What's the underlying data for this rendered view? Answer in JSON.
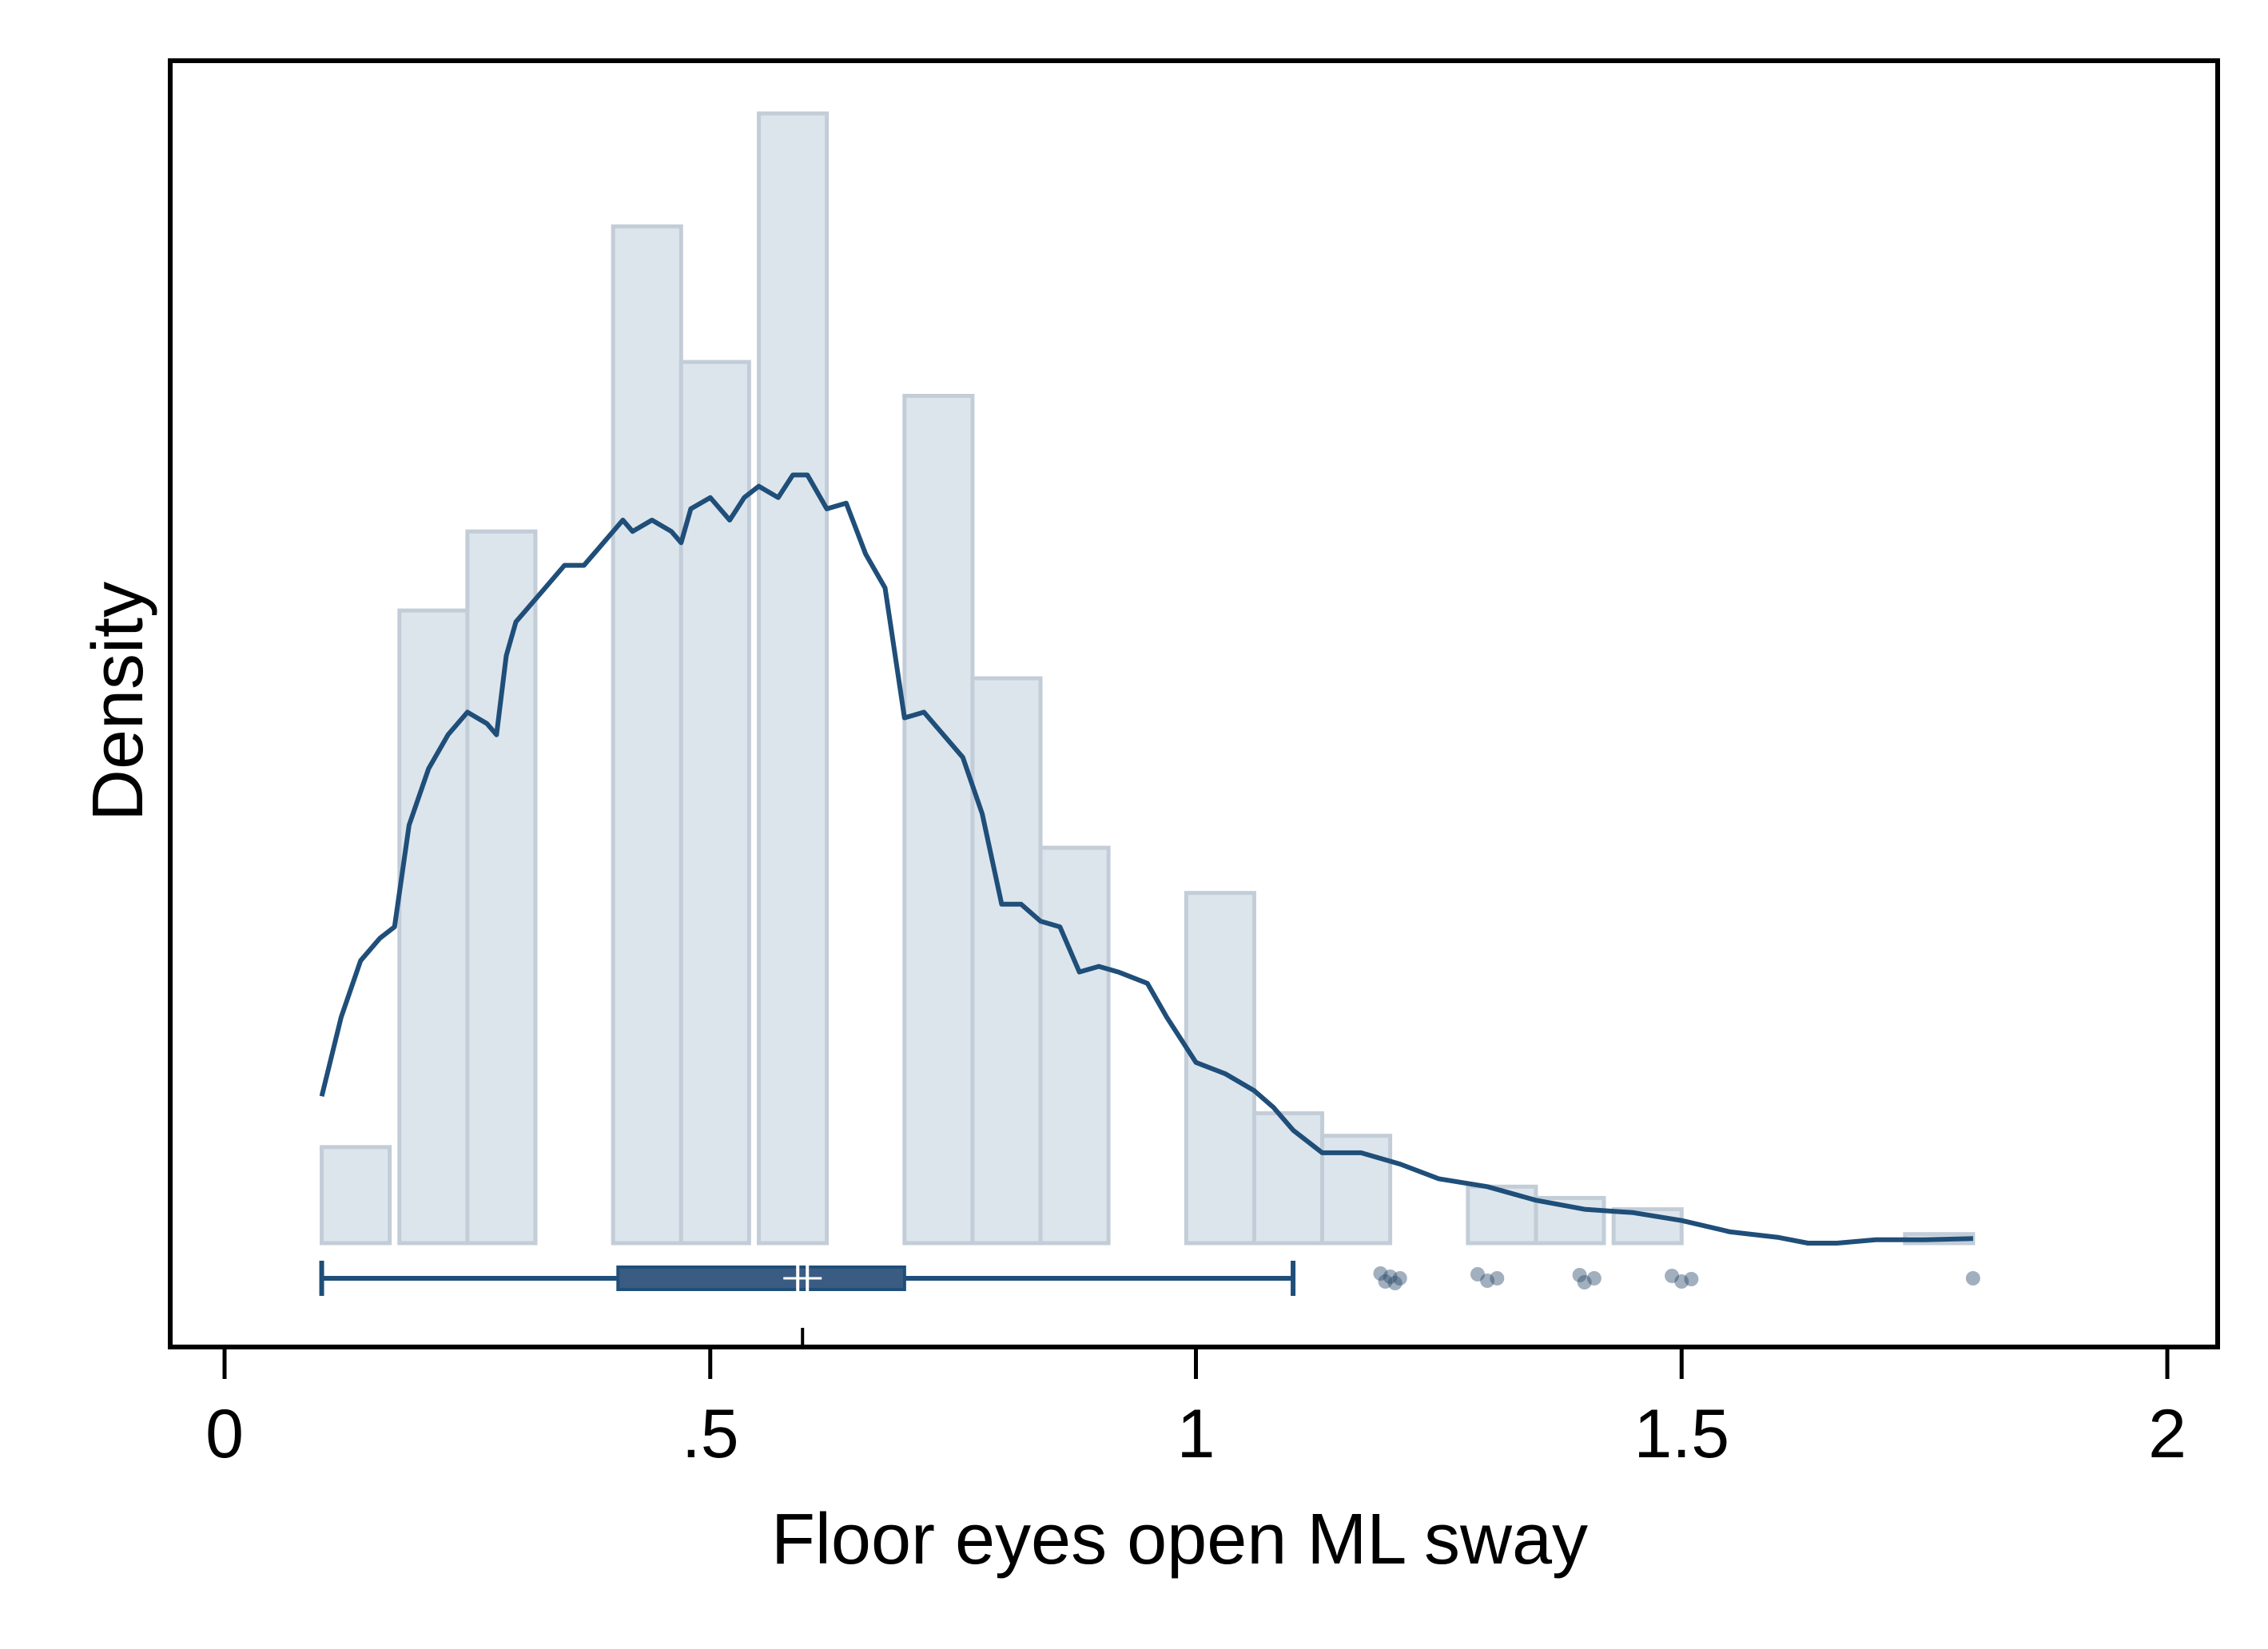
{
  "chart_data": {
    "type": "histogram",
    "xlabel": "Floor eyes open ML sway",
    "ylabel": "Density",
    "xlim": [
      0,
      2
    ],
    "x_ticks": [
      {
        "value": 0,
        "label": "0"
      },
      {
        "value": 0.5,
        "label": ".5"
      },
      {
        "value": 1,
        "label": "1"
      },
      {
        "value": 1.5,
        "label": "1.5"
      },
      {
        "value": 2,
        "label": "2"
      }
    ],
    "ylim": [
      0,
      1.02
    ],
    "grid": false,
    "bins": [
      {
        "x0": 0.1,
        "x1": 0.17,
        "height": 0.085
      },
      {
        "x0": 0.18,
        "x1": 0.25,
        "height": 0.56
      },
      {
        "x0": 0.25,
        "x1": 0.32,
        "height": 0.63
      },
      {
        "x0": 0.4,
        "x1": 0.47,
        "height": 0.9
      },
      {
        "x0": 0.47,
        "x1": 0.54,
        "height": 0.78
      },
      {
        "x0": 0.55,
        "x1": 0.62,
        "height": 1.0
      },
      {
        "x0": 0.7,
        "x1": 0.77,
        "height": 0.75
      },
      {
        "x0": 0.77,
        "x1": 0.84,
        "height": 0.5
      },
      {
        "x0": 0.84,
        "x1": 0.91,
        "height": 0.35
      },
      {
        "x0": 0.99,
        "x1": 1.06,
        "height": 0.31
      },
      {
        "x0": 1.06,
        "x1": 1.13,
        "height": 0.115
      },
      {
        "x0": 1.13,
        "x1": 1.2,
        "height": 0.095
      },
      {
        "x0": 1.28,
        "x1": 1.35,
        "height": 0.05
      },
      {
        "x0": 1.35,
        "x1": 1.42,
        "height": 0.04
      },
      {
        "x0": 1.43,
        "x1": 1.5,
        "height": 0.03
      },
      {
        "x0": 1.73,
        "x1": 1.8,
        "height": 0.008
      }
    ],
    "density_curve": [
      [
        0.1,
        0.13
      ],
      [
        0.12,
        0.2
      ],
      [
        0.14,
        0.25
      ],
      [
        0.16,
        0.27
      ],
      [
        0.175,
        0.28
      ],
      [
        0.19,
        0.37
      ],
      [
        0.21,
        0.42
      ],
      [
        0.23,
        0.45
      ],
      [
        0.25,
        0.47
      ],
      [
        0.27,
        0.46
      ],
      [
        0.28,
        0.45
      ],
      [
        0.29,
        0.52
      ],
      [
        0.3,
        0.55
      ],
      [
        0.31,
        0.56
      ],
      [
        0.33,
        0.58
      ],
      [
        0.35,
        0.6
      ],
      [
        0.37,
        0.6
      ],
      [
        0.38,
        0.61
      ],
      [
        0.4,
        0.63
      ],
      [
        0.41,
        0.64
      ],
      [
        0.42,
        0.63
      ],
      [
        0.44,
        0.64
      ],
      [
        0.46,
        0.63
      ],
      [
        0.47,
        0.62
      ],
      [
        0.48,
        0.65
      ],
      [
        0.5,
        0.66
      ],
      [
        0.52,
        0.64
      ],
      [
        0.535,
        0.66
      ],
      [
        0.55,
        0.67
      ],
      [
        0.57,
        0.66
      ],
      [
        0.585,
        0.68
      ],
      [
        0.6,
        0.68
      ],
      [
        0.62,
        0.65
      ],
      [
        0.64,
        0.655
      ],
      [
        0.66,
        0.61
      ],
      [
        0.68,
        0.58
      ],
      [
        0.7,
        0.465
      ],
      [
        0.72,
        0.47
      ],
      [
        0.74,
        0.45
      ],
      [
        0.76,
        0.43
      ],
      [
        0.78,
        0.38
      ],
      [
        0.8,
        0.3
      ],
      [
        0.82,
        0.3
      ],
      [
        0.84,
        0.285
      ],
      [
        0.86,
        0.28
      ],
      [
        0.88,
        0.24
      ],
      [
        0.9,
        0.245
      ],
      [
        0.92,
        0.24
      ],
      [
        0.95,
        0.23
      ],
      [
        0.97,
        0.2
      ],
      [
        1.0,
        0.16
      ],
      [
        1.03,
        0.15
      ],
      [
        1.06,
        0.135
      ],
      [
        1.08,
        0.12
      ],
      [
        1.1,
        0.1
      ],
      [
        1.13,
        0.08
      ],
      [
        1.17,
        0.08
      ],
      [
        1.21,
        0.07
      ],
      [
        1.25,
        0.057
      ],
      [
        1.3,
        0.05
      ],
      [
        1.35,
        0.038
      ],
      [
        1.4,
        0.03
      ],
      [
        1.45,
        0.027
      ],
      [
        1.5,
        0.02
      ],
      [
        1.55,
        0.01
      ],
      [
        1.6,
        0.005
      ],
      [
        1.63,
        0.0
      ],
      [
        1.66,
        0.0
      ],
      [
        1.7,
        0.003
      ],
      [
        1.75,
        0.003
      ],
      [
        1.8,
        0.004
      ]
    ],
    "box_plot": {
      "whisker_low": 0.1,
      "q1": 0.405,
      "median": 0.595,
      "q3": 0.7,
      "whisker_high": 1.1,
      "outliers": [
        1.19,
        1.195,
        1.2,
        1.205,
        1.21,
        1.29,
        1.3,
        1.31,
        1.395,
        1.4,
        1.41,
        1.49,
        1.5,
        1.51,
        1.8
      ]
    },
    "colors": {
      "bar_fill": "#dde5ec",
      "bar_stroke": "#c2cdd8",
      "curve": "#1f4e79",
      "box_fill": "#3b5c82",
      "whisker": "#1f4e79",
      "outlier": "#2e4d6e",
      "frame": "#000000"
    }
  }
}
